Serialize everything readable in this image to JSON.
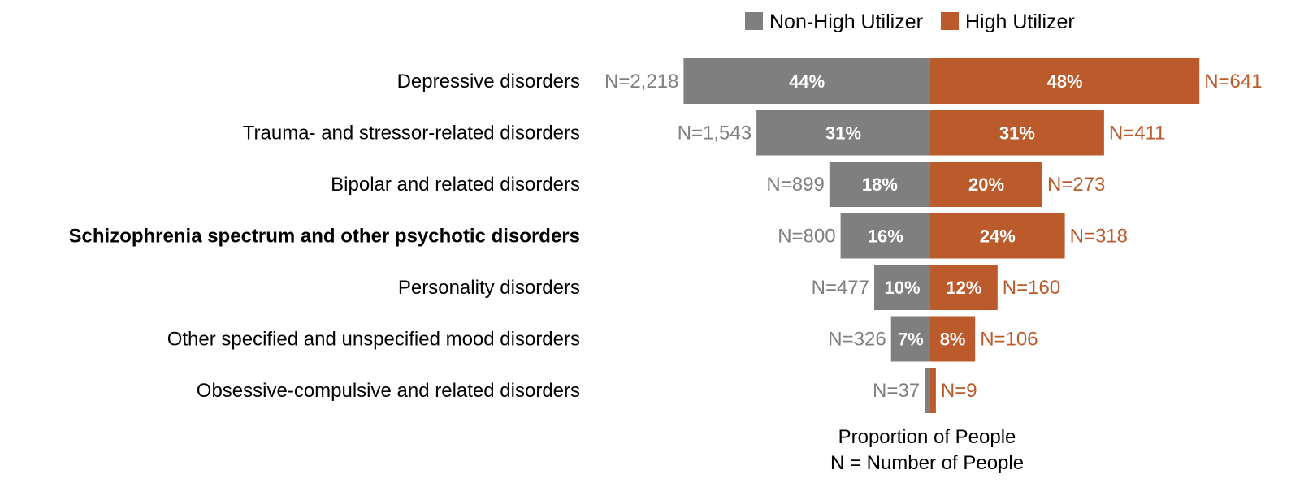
{
  "chart_data": {
    "type": "bar",
    "orientation": "horizontal-diverging",
    "legend": [
      {
        "name": "Non-High Utilizer",
        "color": "#7f7f7f"
      },
      {
        "name": "High Utilizer",
        "color": "#bb5a2a"
      }
    ],
    "legend_position": "top-center",
    "grid": false,
    "categories": [
      "Depressive disorders",
      "Trauma- and stressor-related disorders",
      "Bipolar and related disorders",
      "Schizophrenia spectrum and other psychotic disorders",
      "Personality disorders",
      "Other specified and unspecified mood disorders",
      "Obsessive-compulsive and related disorders"
    ],
    "highlighted_category": "Schizophrenia spectrum and other psychotic disorders",
    "series": [
      {
        "name": "Non-High Utilizer",
        "values": [
          44,
          31,
          18,
          16,
          10,
          7,
          1
        ],
        "value_labels": [
          "44%",
          "31%",
          "18%",
          "16%",
          "10%",
          "7%",
          ""
        ],
        "n_labels": [
          "N=2,218",
          "N=1,543",
          "N=899",
          "N=800",
          "N=477",
          "N=326",
          "N=37"
        ]
      },
      {
        "name": "High Utilizer",
        "values": [
          48,
          31,
          20,
          24,
          12,
          8,
          1
        ],
        "value_labels": [
          "48%",
          "31%",
          "20%",
          "24%",
          "12%",
          "8%",
          ""
        ],
        "n_labels": [
          "N=641",
          "N=411",
          "N=273",
          "N=318",
          "N=160",
          "N=106",
          "N=9"
        ]
      }
    ],
    "xlabel_lines": [
      "Proportion of People",
      "N = Number of People"
    ]
  }
}
